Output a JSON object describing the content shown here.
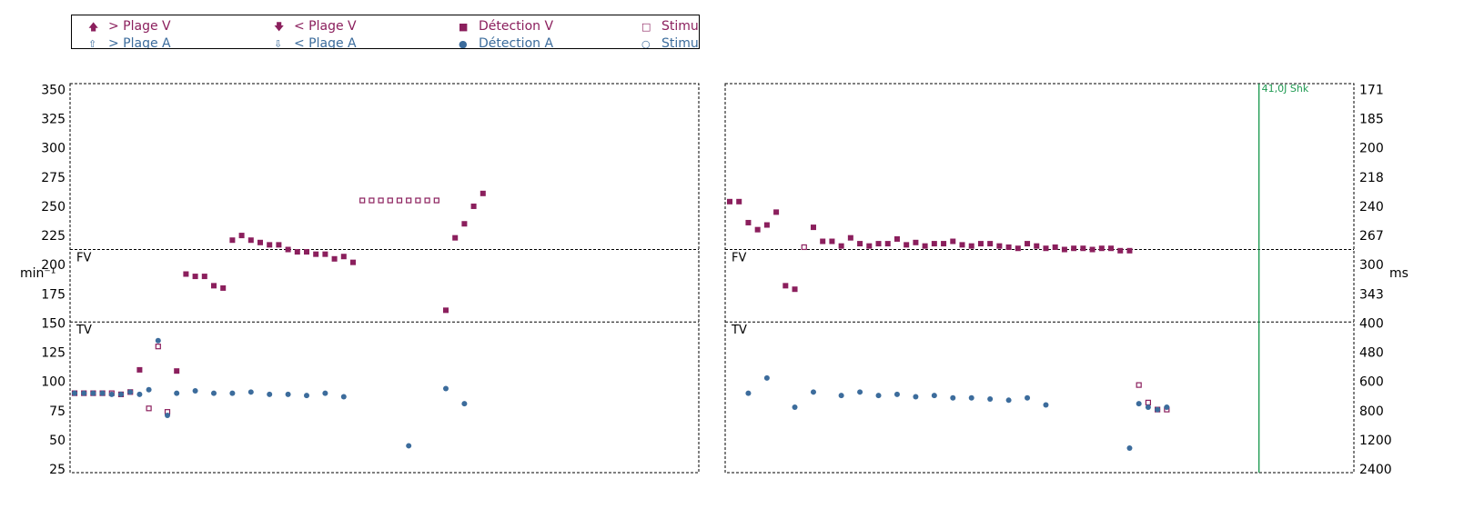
{
  "colors": {
    "ventricular": "#8b1f5d",
    "atrial": "#3c6c9c",
    "shock": "#1f9a52",
    "frame": "#000000"
  },
  "legend": {
    "items": [
      {
        "label": "> Plage V",
        "icon": "arrow-up-filled-icon",
        "color": "#8b1f5d"
      },
      {
        "label": "< Plage V",
        "icon": "arrow-down-filled-icon",
        "color": "#8b1f5d"
      },
      {
        "label": "Détection V",
        "icon": "filled-square-icon",
        "color": "#8b1f5d"
      },
      {
        "label": "Stimulation V",
        "icon": "open-square-icon",
        "color": "#8b1f5d"
      },
      {
        "label": "> Plage A",
        "icon": "arrow-up-open-icon",
        "color": "#3c6c9c"
      },
      {
        "label": "< Plage A",
        "icon": "arrow-down-open-icon",
        "color": "#3c6c9c"
      },
      {
        "label": "Détection A",
        "icon": "filled-circle-icon",
        "color": "#3c6c9c"
      },
      {
        "label": "Stimulation A",
        "icon": "open-circle-icon",
        "color": "#3c6c9c"
      }
    ]
  },
  "chart_data": {
    "type": "scatter",
    "ylabel_left": "min⁻¹",
    "ylabel_right": "ms",
    "ylim": [
      22,
      355
    ],
    "left_ticks": [
      25,
      50,
      75,
      100,
      125,
      150,
      175,
      200,
      225,
      250,
      275,
      300,
      325,
      350
    ],
    "right_ticks": [
      {
        "label": "171",
        "rate": 350
      },
      {
        "label": "185",
        "rate": 325
      },
      {
        "label": "200",
        "rate": 300
      },
      {
        "label": "218",
        "rate": 275
      },
      {
        "label": "240",
        "rate": 250
      },
      {
        "label": "267",
        "rate": 225
      },
      {
        "label": "300",
        "rate": 200
      },
      {
        "label": "343",
        "rate": 175
      },
      {
        "label": "400",
        "rate": 150
      },
      {
        "label": "480",
        "rate": 125
      },
      {
        "label": "600",
        "rate": 100
      },
      {
        "label": "800",
        "rate": 75
      },
      {
        "label": "1200",
        "rate": 50
      },
      {
        "label": "2400",
        "rate": 25
      }
    ],
    "zones": [
      {
        "label": "FV",
        "rate": 213
      },
      {
        "label": "TV",
        "rate": 151
      }
    ],
    "panels": [
      {
        "beats": [
          {
            "v": [
              "S",
              90
            ],
            "a": [
              "D",
              90
            ]
          },
          {
            "v": [
              "S",
              90
            ],
            "a": [
              "D",
              90
            ]
          },
          {
            "v": [
              "S",
              90
            ],
            "a": [
              "D",
              90
            ]
          },
          {
            "v": [
              "S",
              90
            ],
            "a": [
              "D",
              90
            ]
          },
          {
            "v": [
              "S",
              90
            ],
            "a": [
              "D",
              89
            ]
          },
          {
            "v": [
              "S",
              89
            ],
            "a": [
              "D",
              89
            ]
          },
          {
            "v": [
              "S",
              91
            ],
            "a": [
              "D",
              91
            ]
          },
          {
            "v": [
              "D",
              110
            ],
            "a": [
              "D",
              89
            ]
          },
          {
            "v": [
              "S",
              77
            ],
            "a": [
              "D",
              93
            ]
          },
          {
            "v": [
              "S",
              130
            ],
            "a": [
              "D",
              135
            ]
          },
          {
            "v": [
              "S",
              74
            ],
            "a": [
              "D",
              71
            ]
          },
          {
            "v": [
              "D",
              109
            ],
            "a": [
              "D",
              90
            ]
          },
          {
            "v": [
              "D",
              192
            ]
          },
          {
            "v": [
              "D",
              190
            ],
            "a": [
              "D",
              92
            ]
          },
          {
            "v": [
              "D",
              190
            ]
          },
          {
            "v": [
              "D",
              182
            ],
            "a": [
              "D",
              90
            ]
          },
          {
            "v": [
              "D",
              180
            ]
          },
          {
            "v": [
              "D",
              221
            ],
            "a": [
              "D",
              90
            ]
          },
          {
            "v": [
              "D",
              225
            ]
          },
          {
            "v": [
              "D",
              221
            ],
            "a": [
              "D",
              91
            ]
          },
          {
            "v": [
              "D",
              219
            ]
          },
          {
            "v": [
              "D",
              217
            ],
            "a": [
              "D",
              89
            ]
          },
          {
            "v": [
              "D",
              217
            ]
          },
          {
            "v": [
              "D",
              213
            ],
            "a": [
              "D",
              89
            ]
          },
          {
            "v": [
              "D",
              211
            ]
          },
          {
            "v": [
              "D",
              211
            ],
            "a": [
              "D",
              88
            ]
          },
          {
            "v": [
              "D",
              209
            ]
          },
          {
            "v": [
              "D",
              209
            ],
            "a": [
              "D",
              90
            ]
          },
          {
            "v": [
              "D",
              205
            ]
          },
          {
            "v": [
              "D",
              207
            ],
            "a": [
              "D",
              87
            ]
          },
          {
            "v": [
              "D",
              202
            ]
          },
          {
            "v": [
              "S",
              255
            ]
          },
          {
            "v": [
              "S",
              255
            ]
          },
          {
            "v": [
              "S",
              255
            ]
          },
          {
            "v": [
              "S",
              255
            ]
          },
          {
            "v": [
              "S",
              255
            ]
          },
          {
            "v": [
              "S",
              255
            ],
            "a": [
              "D",
              45
            ]
          },
          {
            "v": [
              "S",
              255
            ]
          },
          {
            "v": [
              "S",
              255
            ]
          },
          {
            "v": [
              "S",
              255
            ]
          },
          {
            "v": [
              "D",
              161
            ],
            "a": [
              "D",
              94
            ]
          },
          {
            "v": [
              "D",
              223
            ]
          },
          {
            "v": [
              "D",
              235
            ],
            "a": [
              "D",
              81
            ]
          },
          {
            "v": [
              "D",
              250
            ]
          },
          {
            "v": [
              "D",
              261
            ]
          }
        ]
      },
      {
        "shock_label": "41,0J Shk",
        "shock_index": 58,
        "beats": [
          {
            "v": [
              "D",
              254
            ]
          },
          {
            "v": [
              "D",
              254
            ]
          },
          {
            "v": [
              "D",
              236
            ],
            "a": [
              "D",
              90
            ]
          },
          {
            "v": [
              "D",
              230
            ]
          },
          {
            "v": [
              "D",
              234
            ],
            "a": [
              "D",
              103
            ]
          },
          {
            "v": [
              "D",
              245
            ]
          },
          {
            "v": [
              "D",
              182
            ]
          },
          {
            "v": [
              "D",
              179
            ],
            "a": [
              "D",
              78
            ]
          },
          {
            "v": [
              "S",
              215
            ]
          },
          {
            "v": [
              "D",
              232
            ],
            "a": [
              "D",
              91
            ]
          },
          {
            "v": [
              "D",
              220
            ]
          },
          {
            "v": [
              "D",
              220
            ]
          },
          {
            "v": [
              "D",
              216
            ],
            "a": [
              "D",
              88
            ]
          },
          {
            "v": [
              "D",
              223
            ]
          },
          {
            "v": [
              "D",
              218
            ],
            "a": [
              "D",
              91
            ]
          },
          {
            "v": [
              "D",
              216
            ]
          },
          {
            "v": [
              "D",
              218
            ],
            "a": [
              "D",
              88
            ]
          },
          {
            "v": [
              "D",
              218
            ]
          },
          {
            "v": [
              "D",
              222
            ],
            "a": [
              "D",
              89
            ]
          },
          {
            "v": [
              "D",
              217
            ]
          },
          {
            "v": [
              "D",
              219
            ],
            "a": [
              "D",
              87
            ]
          },
          {
            "v": [
              "D",
              216
            ]
          },
          {
            "v": [
              "D",
              218
            ],
            "a": [
              "D",
              88
            ]
          },
          {
            "v": [
              "D",
              218
            ]
          },
          {
            "v": [
              "D",
              220
            ],
            "a": [
              "D",
              86
            ]
          },
          {
            "v": [
              "D",
              217
            ]
          },
          {
            "v": [
              "D",
              216
            ],
            "a": [
              "D",
              86
            ]
          },
          {
            "v": [
              "D",
              218
            ]
          },
          {
            "v": [
              "D",
              218
            ],
            "a": [
              "D",
              85
            ]
          },
          {
            "v": [
              "D",
              216
            ]
          },
          {
            "v": [
              "D",
              215
            ],
            "a": [
              "D",
              84
            ]
          },
          {
            "v": [
              "D",
              214
            ]
          },
          {
            "v": [
              "D",
              218
            ],
            "a": [
              "D",
              86
            ]
          },
          {
            "v": [
              "D",
              216
            ]
          },
          {
            "v": [
              "D",
              214
            ],
            "a": [
              "D",
              80
            ]
          },
          {
            "v": [
              "D",
              215
            ]
          },
          {
            "v": [
              "D",
              213
            ]
          },
          {
            "v": [
              "D",
              214
            ]
          },
          {
            "v": [
              "D",
              214
            ]
          },
          {
            "v": [
              "D",
              213
            ]
          },
          {
            "v": [
              "D",
              214
            ]
          },
          {
            "v": [
              "D",
              214
            ]
          },
          {
            "v": [
              "D",
              212
            ]
          },
          {
            "v": [
              "D",
              212
            ],
            "a": [
              "D",
              43
            ]
          },
          {
            "v": [
              "S",
              97
            ],
            "a": [
              "D",
              81
            ]
          },
          {
            "v": [
              "S",
              82
            ],
            "a": [
              "D",
              78
            ]
          },
          {
            "v": [
              "S",
              76
            ],
            "a": [
              "D",
              76
            ]
          },
          {
            "v": [
              "S",
              76
            ],
            "a": [
              "D",
              78
            ]
          }
        ]
      }
    ]
  }
}
